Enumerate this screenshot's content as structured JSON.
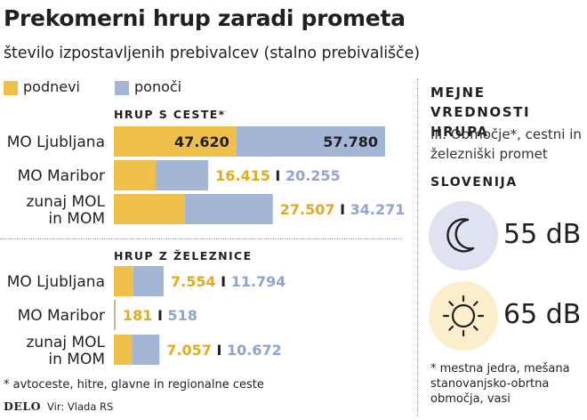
{
  "title": "Prekomerni hrup zaradi prometa",
  "subtitle": "število izpostavljenih prebivalcev (stalno prebivališče)",
  "legend": {
    "day": "podnevi",
    "night": "ponoči"
  },
  "colors": {
    "day": "#eec04a",
    "night": "#a4b6d6",
    "day_text": "#e3a91f",
    "night_text": "#8fa5cb",
    "moon_bg": "#dde3f0",
    "sun_bg": "#fbeeca"
  },
  "chart_data": {
    "type": "bar",
    "stacked": true,
    "orientation": "horizontal",
    "title": "Prekomerni hrup zaradi prometa",
    "subtitle": "število izpostavljenih prebivalcev (stalno prebivališče)",
    "series_names": [
      "podnevi",
      "ponoči"
    ],
    "groups": [
      {
        "title": "HRUP S CESTE*",
        "categories": [
          {
            "label_lines": [
              "MO Ljubljana"
            ],
            "day": 47620,
            "night": 57780,
            "day_label": "47.620",
            "night_label": "57.780"
          },
          {
            "label_lines": [
              "MO Maribor"
            ],
            "day": 16415,
            "night": 20255,
            "day_label": "16.415",
            "night_label": "20.255"
          },
          {
            "label_lines": [
              "zunaj MOL",
              "in MOM"
            ],
            "day": 27507,
            "night": 34271,
            "day_label": "27.507",
            "night_label": "34.271"
          }
        ]
      },
      {
        "title": "HRUP Z ŽELEZNICE",
        "categories": [
          {
            "label_lines": [
              "MO Ljubljana"
            ],
            "day": 7554,
            "night": 11794,
            "day_label": "7.554",
            "night_label": "11.794"
          },
          {
            "label_lines": [
              "MO Maribor"
            ],
            "day": 181,
            "night": 518,
            "day_label": "181",
            "night_label": "518"
          },
          {
            "label_lines": [
              "zunaj MOL",
              "in MOM"
            ],
            "day": 7057,
            "night": 10672,
            "day_label": "7.057",
            "night_label": "10.672"
          }
        ]
      }
    ],
    "separator": "I"
  },
  "footnote": "* avtoceste, hitre, glavne in regionalne ceste",
  "source": {
    "brand": "DELO",
    "text": "Vir: Vlada RS"
  },
  "panel": {
    "title": "MEJNE VREDNOSTI HRUPA",
    "subtitle": "III. Območje*, cestni in železniški promet",
    "region": "SLOVENIJA",
    "night": {
      "icon": "moon-icon",
      "value": "55 dB"
    },
    "day": {
      "icon": "sun-icon",
      "value": "65 dB"
    },
    "note": "* mestna jedra, mešana stanovanjsko-obrtna območja, vasi"
  }
}
